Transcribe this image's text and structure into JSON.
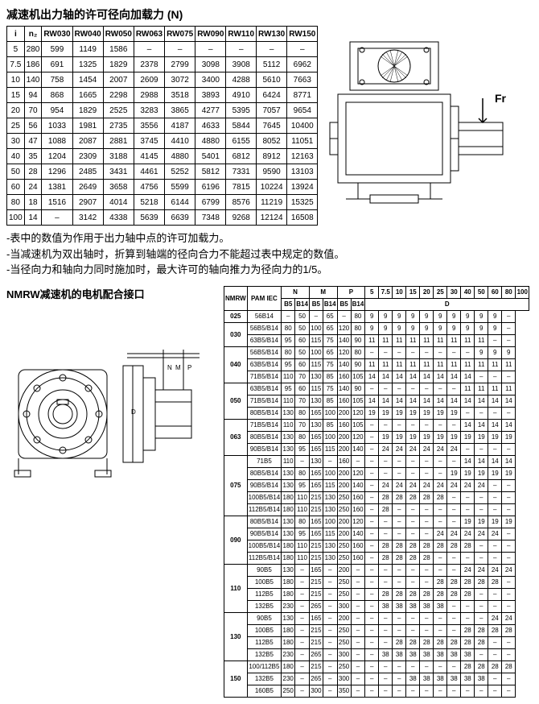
{
  "title1": "减速机出力轴的许可径向加载力 (N)",
  "table1": {
    "headers": [
      "i",
      "n₂",
      "RW030",
      "RW040",
      "RW050",
      "RW063",
      "RW075",
      "RW090",
      "RW110",
      "RW130",
      "RW150"
    ],
    "rows": [
      [
        "5",
        "280",
        "599",
        "1149",
        "1586",
        "–",
        "–",
        "–",
        "–",
        "–",
        "–"
      ],
      [
        "7.5",
        "186",
        "691",
        "1325",
        "1829",
        "2378",
        "2799",
        "3098",
        "3908",
        "5112",
        "6962"
      ],
      [
        "10",
        "140",
        "758",
        "1454",
        "2007",
        "2609",
        "3072",
        "3400",
        "4288",
        "5610",
        "7663"
      ],
      [
        "15",
        "94",
        "868",
        "1665",
        "2298",
        "2988",
        "3518",
        "3893",
        "4910",
        "6424",
        "8771"
      ],
      [
        "20",
        "70",
        "954",
        "1829",
        "2525",
        "3283",
        "3865",
        "4277",
        "5395",
        "7057",
        "9654"
      ],
      [
        "25",
        "56",
        "1033",
        "1981",
        "2735",
        "3556",
        "4187",
        "4633",
        "5844",
        "7645",
        "10400"
      ],
      [
        "30",
        "47",
        "1088",
        "2087",
        "2881",
        "3745",
        "4410",
        "4880",
        "6155",
        "8052",
        "11051"
      ],
      [
        "40",
        "35",
        "1204",
        "2309",
        "3188",
        "4145",
        "4880",
        "5401",
        "6812",
        "8912",
        "12163"
      ],
      [
        "50",
        "28",
        "1296",
        "2485",
        "3431",
        "4461",
        "5252",
        "5812",
        "7331",
        "9590",
        "13103"
      ],
      [
        "60",
        "24",
        "1381",
        "2649",
        "3658",
        "4756",
        "5599",
        "6196",
        "7815",
        "10224",
        "13924"
      ],
      [
        "80",
        "18",
        "1516",
        "2907",
        "4014",
        "5218",
        "6144",
        "6799",
        "8576",
        "11219",
        "15325"
      ],
      [
        "100",
        "14",
        "–",
        "3142",
        "4338",
        "5639",
        "6639",
        "7348",
        "9268",
        "12124",
        "16508"
      ]
    ]
  },
  "notes": [
    "-表中的数值为作用于出力轴中点的许可加载力。",
    "-当减速机为双出轴时，折算到轴端的径向合力不能超过表中规定的数值。",
    "-当径向力和轴向力同时施加时，最大许可的轴向推力为径向力的1/5。"
  ],
  "title2": "NMRW减速机的电机配合接口",
  "fr_label": "Fr",
  "table2": {
    "head_row1": [
      "NMRW",
      "PAM IEC",
      "N",
      "M",
      "P",
      "5",
      "7.5",
      "10",
      "15",
      "20",
      "25",
      "30",
      "40",
      "50",
      "60",
      "80",
      "100"
    ],
    "head_row2": [
      "B5",
      "B14",
      "B5",
      "B14",
      "B5",
      "B14",
      "D"
    ],
    "groups": [
      {
        "nmrw": "025",
        "rows": [
          [
            "56B14",
            "–",
            "50",
            "–",
            "65",
            "–",
            "80",
            "9",
            "9",
            "9",
            "9",
            "9",
            "9",
            "9",
            "9",
            "9",
            "9",
            "–"
          ]
        ]
      },
      {
        "nmrw": "030",
        "rows": [
          [
            "56B5/B14",
            "80",
            "50",
            "100",
            "65",
            "120",
            "80",
            "9",
            "9",
            "9",
            "9",
            "9",
            "9",
            "9",
            "9",
            "9",
            "9",
            "–"
          ],
          [
            "63B5/B14",
            "95",
            "60",
            "115",
            "75",
            "140",
            "90",
            "11",
            "11",
            "11",
            "11",
            "11",
            "11",
            "11",
            "11",
            "11",
            "–",
            "–"
          ]
        ]
      },
      {
        "nmrw": "040",
        "rows": [
          [
            "56B5/B14",
            "80",
            "50",
            "100",
            "65",
            "120",
            "80",
            "–",
            "–",
            "–",
            "–",
            "–",
            "–",
            "–",
            "–",
            "9",
            "9",
            "9"
          ],
          [
            "63B5/B14",
            "95",
            "60",
            "115",
            "75",
            "140",
            "90",
            "11",
            "11",
            "11",
            "11",
            "11",
            "11",
            "11",
            "11",
            "11",
            "11",
            "11"
          ],
          [
            "71B5/B14",
            "110",
            "70",
            "130",
            "85",
            "160",
            "105",
            "14",
            "14",
            "14",
            "14",
            "14",
            "14",
            "14",
            "14",
            "–",
            "–",
            "–"
          ]
        ]
      },
      {
        "nmrw": "050",
        "rows": [
          [
            "63B5/B14",
            "95",
            "60",
            "115",
            "75",
            "140",
            "90",
            "–",
            "–",
            "–",
            "–",
            "–",
            "–",
            "–",
            "11",
            "11",
            "11",
            "11"
          ],
          [
            "71B5/B14",
            "110",
            "70",
            "130",
            "85",
            "160",
            "105",
            "14",
            "14",
            "14",
            "14",
            "14",
            "14",
            "14",
            "14",
            "14",
            "14",
            "14"
          ],
          [
            "80B5/B14",
            "130",
            "80",
            "165",
            "100",
            "200",
            "120",
            "19",
            "19",
            "19",
            "19",
            "19",
            "19",
            "19",
            "–",
            "–",
            "–",
            "–"
          ]
        ]
      },
      {
        "nmrw": "063",
        "rows": [
          [
            "71B5/B14",
            "110",
            "70",
            "130",
            "85",
            "160",
            "105",
            "–",
            "–",
            "–",
            "–",
            "–",
            "–",
            "–",
            "14",
            "14",
            "14",
            "14"
          ],
          [
            "80B5/B14",
            "130",
            "80",
            "165",
            "100",
            "200",
            "120",
            "–",
            "19",
            "19",
            "19",
            "19",
            "19",
            "19",
            "19",
            "19",
            "19",
            "19"
          ],
          [
            "90B5/B14",
            "130",
            "95",
            "165",
            "115",
            "200",
            "140",
            "–",
            "24",
            "24",
            "24",
            "24",
            "24",
            "24",
            "–",
            "–",
            "–",
            "–"
          ]
        ]
      },
      {
        "nmrw": "075",
        "rows": [
          [
            "71B5",
            "110",
            "–",
            "130",
            "–",
            "160",
            "–",
            "–",
            "–",
            "–",
            "–",
            "–",
            "–",
            "–",
            "14",
            "14",
            "14",
            "14"
          ],
          [
            "80B5/B14",
            "130",
            "80",
            "165",
            "100",
            "200",
            "120",
            "–",
            "–",
            "–",
            "–",
            "–",
            "–",
            "19",
            "19",
            "19",
            "19",
            "19"
          ],
          [
            "90B5/B14",
            "130",
            "95",
            "165",
            "115",
            "200",
            "140",
            "–",
            "24",
            "24",
            "24",
            "24",
            "24",
            "24",
            "24",
            "24",
            "–",
            "–"
          ],
          [
            "100B5/B14",
            "180",
            "110",
            "215",
            "130",
            "250",
            "160",
            "–",
            "28",
            "28",
            "28",
            "28",
            "28",
            "–",
            "–",
            "–",
            "–",
            "–"
          ],
          [
            "112B5/B14",
            "180",
            "110",
            "215",
            "130",
            "250",
            "160",
            "–",
            "28",
            "–",
            "–",
            "–",
            "–",
            "–",
            "–",
            "–",
            "–",
            "–"
          ]
        ]
      },
      {
        "nmrw": "090",
        "rows": [
          [
            "80B5/B14",
            "130",
            "80",
            "165",
            "100",
            "200",
            "120",
            "–",
            "–",
            "–",
            "–",
            "–",
            "–",
            "–",
            "19",
            "19",
            "19",
            "19"
          ],
          [
            "90B5/B14",
            "130",
            "95",
            "165",
            "115",
            "200",
            "140",
            "–",
            "–",
            "–",
            "–",
            "–",
            "24",
            "24",
            "24",
            "24",
            "24",
            "–"
          ],
          [
            "100B5/B14",
            "180",
            "110",
            "215",
            "130",
            "250",
            "160",
            "–",
            "28",
            "28",
            "28",
            "28",
            "28",
            "28",
            "28",
            "–",
            "–",
            "–"
          ],
          [
            "112B5/B14",
            "180",
            "110",
            "215",
            "130",
            "250",
            "160",
            "–",
            "28",
            "28",
            "28",
            "28",
            "–",
            "–",
            "–",
            "–",
            "–",
            "–"
          ]
        ]
      },
      {
        "nmrw": "110",
        "rows": [
          [
            "90B5",
            "130",
            "–",
            "165",
            "–",
            "200",
            "–",
            "–",
            "–",
            "–",
            "–",
            "–",
            "–",
            "–",
            "24",
            "24",
            "24",
            "24"
          ],
          [
            "100B5",
            "180",
            "–",
            "215",
            "–",
            "250",
            "–",
            "–",
            "–",
            "–",
            "–",
            "–",
            "28",
            "28",
            "28",
            "28",
            "28",
            "–"
          ],
          [
            "112B5",
            "180",
            "–",
            "215",
            "–",
            "250",
            "–",
            "–",
            "28",
            "28",
            "28",
            "28",
            "28",
            "28",
            "28",
            "–",
            "–",
            "–"
          ],
          [
            "132B5",
            "230",
            "–",
            "265",
            "–",
            "300",
            "–",
            "–",
            "38",
            "38",
            "38",
            "38",
            "38",
            "–",
            "–",
            "–",
            "–",
            "–"
          ]
        ]
      },
      {
        "nmrw": "130",
        "rows": [
          [
            "90B5",
            "130",
            "–",
            "165",
            "–",
            "200",
            "–",
            "–",
            "–",
            "–",
            "–",
            "–",
            "–",
            "–",
            "–",
            "–",
            "24",
            "24"
          ],
          [
            "100B5",
            "180",
            "–",
            "215",
            "–",
            "250",
            "–",
            "–",
            "–",
            "–",
            "–",
            "–",
            "–",
            "–",
            "28",
            "28",
            "28",
            "28"
          ],
          [
            "112B5",
            "180",
            "–",
            "215",
            "–",
            "250",
            "–",
            "–",
            "–",
            "28",
            "28",
            "28",
            "28",
            "28",
            "28",
            "28",
            "–",
            "–"
          ],
          [
            "132B5",
            "230",
            "–",
            "265",
            "–",
            "300",
            "–",
            "–",
            "38",
            "38",
            "38",
            "38",
            "38",
            "38",
            "38",
            "–",
            "–",
            "–"
          ]
        ]
      },
      {
        "nmrw": "150",
        "rows": [
          [
            "100/112B5",
            "180",
            "–",
            "215",
            "–",
            "250",
            "–",
            "–",
            "–",
            "–",
            "–",
            "–",
            "–",
            "–",
            "28",
            "28",
            "28",
            "28"
          ],
          [
            "132B5",
            "230",
            "–",
            "265",
            "–",
            "300",
            "–",
            "–",
            "–",
            "–",
            "38",
            "38",
            "38",
            "38",
            "38",
            "38",
            "–",
            "–"
          ],
          [
            "160B5",
            "250",
            "–",
            "300",
            "–",
            "350",
            "–",
            "–",
            "–",
            "–",
            "–",
            "–",
            "–",
            "–",
            "–",
            "–",
            "–",
            "–"
          ]
        ]
      }
    ]
  },
  "diagram1": {
    "stroke": "#000",
    "fill": "none",
    "hatch": "#000"
  },
  "diagram2": {
    "stroke": "#000",
    "fill": "none"
  }
}
